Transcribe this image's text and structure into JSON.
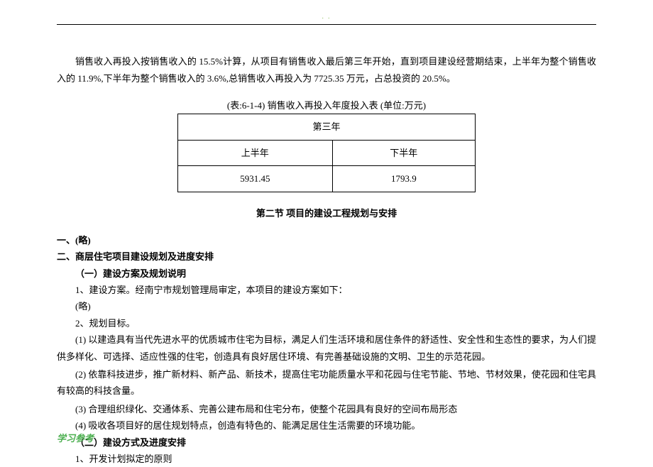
{
  "topDots": ". .",
  "intro_p1": "销售收入再投入按销售收入的 15.5%计算，从项目有销售收入最后第三年开始，直到项目建设经营期结束，上半年为整个销售收入的 11.9%,下半年为整个销售收入的 3.6%,总销售收入再投入为 7725.35 万元，占总投资的 20.5%。",
  "table": {
    "caption": "(表:6-1-4)  销售收入再投入年度投入表   (单位:万元)",
    "header_year": "第三年",
    "col1_label": "上半年",
    "col2_label": "下半年",
    "val1": "5931.45",
    "val2": "1793.9"
  },
  "section_title": "第二节   项目的建设工程规划与安排",
  "h1": "一、(略)",
  "h2": "二、商层住宅项目建设规划及进度安排",
  "sub1": "（一）建设方案及规划说明",
  "item1": "1、建设方案。经南宁市规划管理局审定，本项目的建设方案如下：",
  "item1_omit": "(略)",
  "item2": "2、规划目标。",
  "item2_1": "(1) 以建造具有当代先进水平的优质城市住宅为目标，满足人们生活环境和居住条件的舒适性、安全性和生态性的要求，为人们提供多样化、可选择、适应性强的住宅，创造具有良好居住环境、有完善基础设施的文明、卫生的示范花园。",
  "item2_2": "(2) 依靠科技进步，推广新材料、新产品、新技术，提高住宅功能质量水平和花园与住宅节能、节地、节材效果，使花园和住宅具有较高的科技含量。",
  "item2_3": "(3) 合理组织绿化、交通体系、完善公建布局和住宅分布，使整个花园具有良好的空间布局形态",
  "item2_4": "(4) 吸收各项目好的居住规划特点，创造有特色的、能满足居住生活需要的环境功能。",
  "sub2": "（二）建设方式及进度安排",
  "item3": "1、开发计划拟定的原则",
  "footer": "学习参考",
  "colors": {
    "green": "#4caf50",
    "text": "#000000",
    "bg": "#ffffff"
  }
}
